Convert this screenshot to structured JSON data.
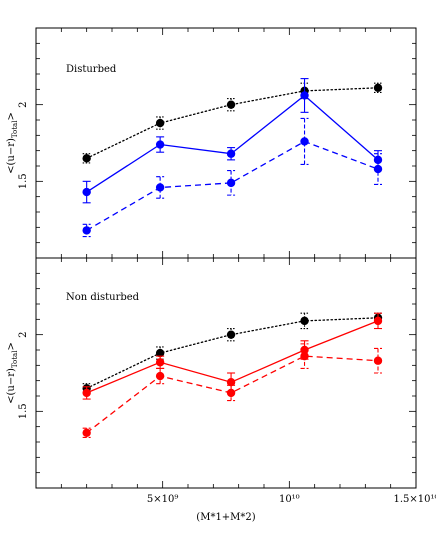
{
  "figure": {
    "xlabel": "(M*1+M*2)",
    "ylabel_main": "<(u−r)",
    "ylabel_sub": "Total",
    "ylabel_end": ">"
  },
  "chart_data": [
    {
      "type": "line",
      "title": "",
      "panel_label": "Disturbed",
      "xlabel": "(M*1+M*2)",
      "ylabel": "<(u-r)Total>",
      "xlim": [
        0,
        15000000000
      ],
      "ylim": [
        1,
        2.5
      ],
      "grid": false,
      "x_ticks": [
        {
          "value": 5000000000,
          "label": "5×10⁹"
        },
        {
          "value": 10000000000,
          "label": "10¹⁰"
        },
        {
          "value": 15000000000,
          "label": "1.5×10¹⁰"
        }
      ],
      "y_ticks": [
        {
          "value": 1.5,
          "label": "1.5"
        },
        {
          "value": 2,
          "label": "2"
        }
      ],
      "series": [
        {
          "color": "#000000",
          "linestyle": "dotted",
          "x": [
            2000000000,
            4900000000,
            7700000000,
            10600000000,
            13500000000
          ],
          "y": [
            1.65,
            1.88,
            2.0,
            2.09,
            2.11
          ],
          "err": [
            0.03,
            0.04,
            0.04,
            0.05,
            0.03
          ]
        },
        {
          "color": "#0000ff",
          "linestyle": "solid",
          "x": [
            2000000000,
            4900000000,
            7700000000,
            10600000000,
            13500000000
          ],
          "y": [
            1.43,
            1.74,
            1.68,
            2.06,
            1.64
          ],
          "err": [
            0.07,
            0.05,
            0.04,
            0.11,
            0.06
          ]
        },
        {
          "color": "#0000ff",
          "linestyle": "dashed",
          "x": [
            2000000000,
            4900000000,
            7700000000,
            10600000000,
            13500000000
          ],
          "y": [
            1.18,
            1.46,
            1.49,
            1.76,
            1.58
          ],
          "err": [
            0.04,
            0.07,
            0.08,
            0.15,
            0.1
          ]
        }
      ]
    },
    {
      "type": "line",
      "title": "",
      "panel_label": "Non disturbed",
      "xlabel": "(M*1+M*2)",
      "ylabel": "<(u-r)Total>",
      "xlim": [
        0,
        15000000000
      ],
      "ylim": [
        1,
        2.5
      ],
      "grid": false,
      "x_ticks": [
        {
          "value": 5000000000,
          "label": "5×10⁹"
        },
        {
          "value": 10000000000,
          "label": "10¹⁰"
        },
        {
          "value": 15000000000,
          "label": "1.5×10¹⁰"
        }
      ],
      "y_ticks": [
        {
          "value": 1.5,
          "label": "1.5"
        },
        {
          "value": 2,
          "label": "2"
        }
      ],
      "series": [
        {
          "color": "#000000",
          "linestyle": "dotted",
          "x": [
            2000000000,
            4900000000,
            7700000000,
            10600000000,
            13500000000
          ],
          "y": [
            1.65,
            1.88,
            2.0,
            2.09,
            2.11
          ],
          "err": [
            0.03,
            0.04,
            0.04,
            0.05,
            0.03
          ]
        },
        {
          "color": "#ff0000",
          "linestyle": "solid",
          "x": [
            2000000000,
            4900000000,
            7700000000,
            10600000000,
            13500000000
          ],
          "y": [
            1.62,
            1.82,
            1.69,
            1.9,
            2.09
          ],
          "err": [
            0.04,
            0.04,
            0.06,
            0.06,
            0.05
          ]
        },
        {
          "color": "#ff0000",
          "linestyle": "dashed",
          "x": [
            2000000000,
            4900000000,
            7700000000,
            10600000000,
            13500000000
          ],
          "y": [
            1.36,
            1.73,
            1.62,
            1.86,
            1.83
          ],
          "err": [
            0.03,
            0.05,
            0.05,
            0.08,
            0.08
          ]
        }
      ]
    }
  ]
}
